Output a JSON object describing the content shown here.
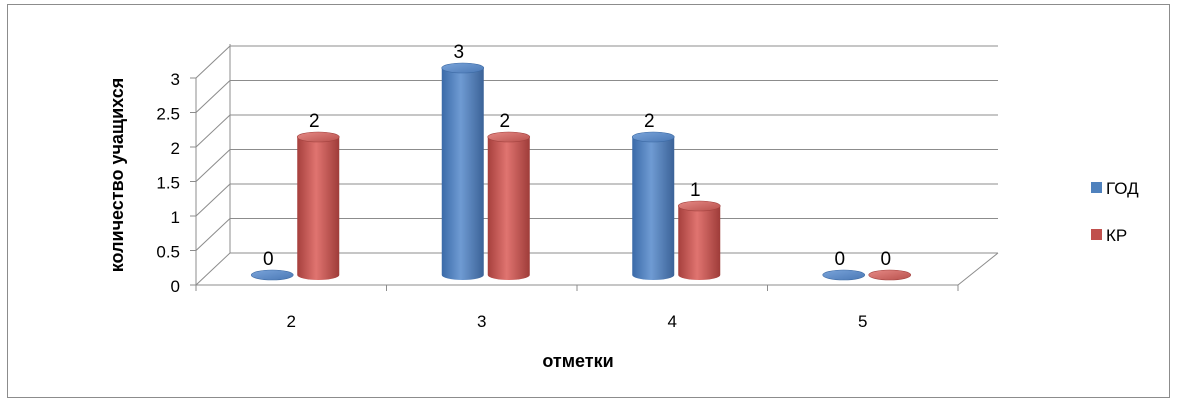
{
  "chart_data": {
    "type": "bar",
    "title": "",
    "xlabel": "отметки",
    "ylabel": "количество учащихся",
    "categories": [
      "2",
      "3",
      "4",
      "5"
    ],
    "series": [
      {
        "name": "ГОД",
        "values": [
          0,
          3,
          2,
          0
        ],
        "color": "#4f81bd"
      },
      {
        "name": "КР",
        "values": [
          2,
          2,
          1,
          0
        ],
        "color": "#c0504d"
      }
    ],
    "y_ticks": [
      "0",
      "0.5",
      "1",
      "1.5",
      "2",
      "2.5",
      "3"
    ],
    "ylim": [
      0,
      3
    ],
    "grid": true,
    "legend_position": "right",
    "style": "3d-cylinder"
  }
}
